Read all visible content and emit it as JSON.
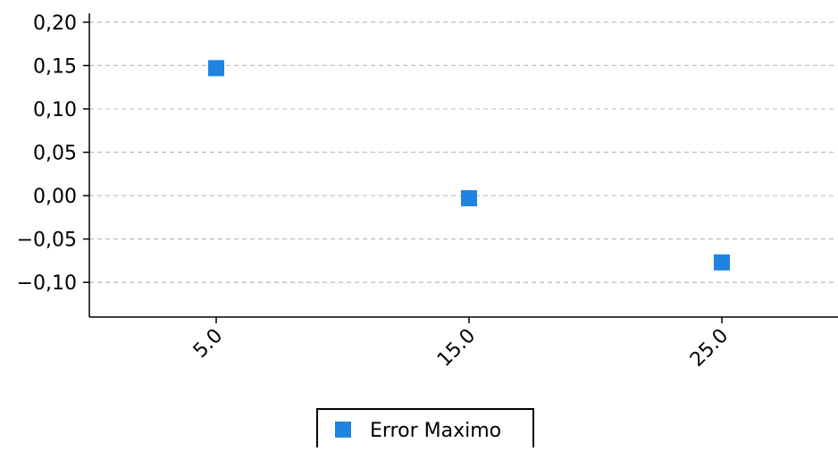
{
  "chart_data": {
    "type": "scatter",
    "title": "",
    "xlabel": "",
    "ylabel": "",
    "categories": [
      "5.0",
      "15.0",
      "25.0"
    ],
    "series": [
      {
        "name": "Error Maximo",
        "color": "#1f83e0",
        "values": [
          0.147,
          -0.003,
          -0.077
        ]
      }
    ],
    "ylim": [
      -0.14,
      0.205
    ],
    "yticks": [
      0.2,
      0.15,
      0.1,
      0.05,
      0.0,
      -0.05,
      -0.1
    ],
    "ytick_labels": [
      "0,20",
      "0,15",
      "0,10",
      "0,05",
      "0,00",
      "−0,05",
      "−0,10"
    ],
    "grid": true,
    "legend_position": "bottom-center"
  }
}
